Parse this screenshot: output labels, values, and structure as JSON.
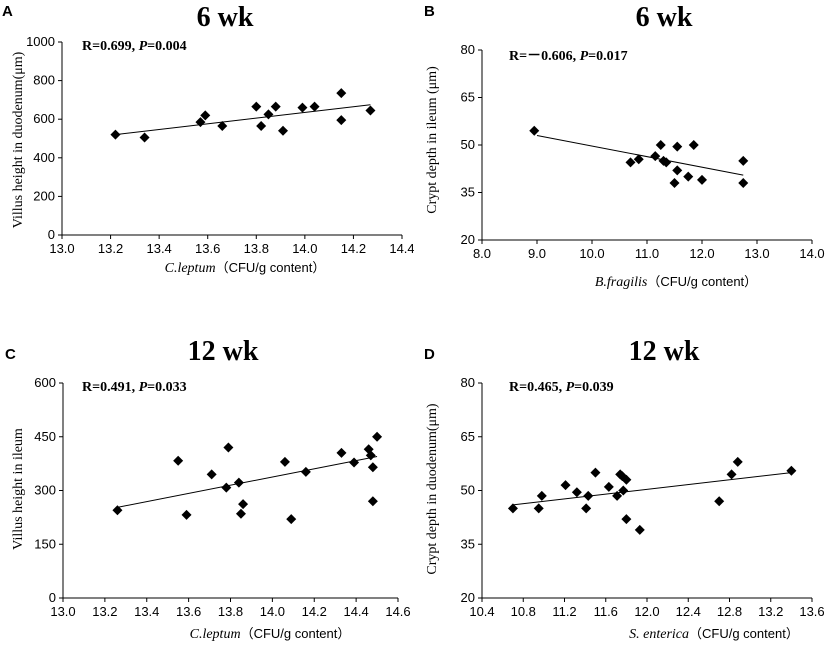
{
  "chart_data": [
    {
      "type": "scatter",
      "panel_label": "A",
      "title": "6 wk",
      "stat_r": "R=0.699, ",
      "stat_p_symbol": "P",
      "stat_p_value": "=0.004",
      "ylabel": "Villus height in duodenum(μm)",
      "xlabel_organism": "C.leptum",
      "xlabel_unit": "（CFU/g content）",
      "xlim": [
        13.0,
        14.4
      ],
      "ylim": [
        0,
        1000
      ],
      "xticks": [
        "13.0",
        "13.2",
        "13.4",
        "13.6",
        "13.8",
        "14.0",
        "14.2",
        "14.4"
      ],
      "yticks": [
        "0",
        "200",
        "400",
        "600",
        "800",
        "1000"
      ],
      "x": [
        13.22,
        13.34,
        13.57,
        13.59,
        13.66,
        13.8,
        13.82,
        13.85,
        13.88,
        13.91,
        13.99,
        14.04,
        14.15,
        14.15,
        14.27
      ],
      "y": [
        520,
        505,
        585,
        620,
        565,
        665,
        565,
        625,
        665,
        540,
        660,
        665,
        595,
        735,
        645
      ],
      "trend": [
        [
          13.22,
          520
        ],
        [
          14.27,
          675
        ]
      ]
    },
    {
      "type": "scatter",
      "panel_label": "B",
      "title": "6 wk",
      "stat_r": "R=－0.606, ",
      "stat_p_symbol": "P",
      "stat_p_value": "=0.017",
      "ylabel": "Crypt depth in ileum (μm)",
      "xlabel_organism": "B.fragilis",
      "xlabel_unit": "（CFU/g content）",
      "xlim": [
        8.0,
        14.0
      ],
      "ylim": [
        20,
        80
      ],
      "xticks": [
        "8.0",
        "9.0",
        "10.0",
        "11.0",
        "12.0",
        "13.0",
        "14.0"
      ],
      "yticks": [
        "20",
        "35",
        "50",
        "65",
        "80"
      ],
      "x": [
        8.95,
        10.7,
        10.85,
        11.15,
        11.25,
        11.3,
        11.35,
        11.5,
        11.55,
        11.55,
        11.75,
        11.85,
        12.0,
        12.75,
        12.75
      ],
      "y": [
        54.5,
        44.5,
        45.5,
        46.5,
        50,
        45,
        44.5,
        38,
        42,
        49.5,
        40,
        50,
        39,
        45,
        38
      ],
      "trend": [
        [
          9.0,
          53
        ],
        [
          12.75,
          40.5
        ]
      ]
    },
    {
      "type": "scatter",
      "panel_label": "C",
      "title": "12 wk",
      "stat_r": "R=0.491, ",
      "stat_p_symbol": "P",
      "stat_p_value": "=0.033",
      "ylabel": "Villus height in ileum",
      "xlabel_organism": "C.leptum",
      "xlabel_unit": "（CFU/g content）",
      "xlim": [
        13.0,
        14.6
      ],
      "ylim": [
        0,
        600
      ],
      "xticks": [
        "13.0",
        "13.2",
        "13.4",
        "13.6",
        "13.8",
        "14.0",
        "14.2",
        "14.4",
        "14.6"
      ],
      "yticks": [
        "0",
        "150",
        "300",
        "450",
        "600"
      ],
      "x": [
        13.26,
        13.55,
        13.59,
        13.71,
        13.78,
        13.79,
        13.84,
        13.85,
        13.86,
        14.06,
        14.09,
        14.16,
        14.33,
        14.39,
        14.46,
        14.47,
        14.48,
        14.48,
        14.5
      ],
      "y": [
        245,
        383,
        232,
        345,
        308,
        420,
        322,
        235,
        262,
        380,
        220,
        352,
        405,
        378,
        415,
        398,
        270,
        365,
        450
      ],
      "trend": [
        [
          13.26,
          253
        ],
        [
          14.5,
          395
        ]
      ]
    },
    {
      "type": "scatter",
      "panel_label": "D",
      "title": "12 wk",
      "stat_r": "R=0.465, ",
      "stat_p_symbol": "P",
      "stat_p_value": "=0.039",
      "ylabel": "Crypt depth in duodenum(μm)",
      "xlabel_organism": "S. enterica",
      "xlabel_unit": "（CFU/g content）",
      "xlim": [
        10.4,
        13.6
      ],
      "ylim": [
        20,
        80
      ],
      "xticks": [
        "10.4",
        "10.8",
        "11.2",
        "11.6",
        "12.0",
        "12.4",
        "12.8",
        "13.2",
        "13.6"
      ],
      "yticks": [
        "20",
        "35",
        "50",
        "65",
        "80"
      ],
      "x": [
        10.7,
        10.95,
        10.98,
        11.21,
        11.32,
        11.41,
        11.43,
        11.5,
        11.63,
        11.71,
        11.74,
        11.76,
        11.77,
        11.8,
        11.8,
        11.93,
        12.7,
        12.82,
        12.88,
        13.4
      ],
      "y": [
        45,
        45,
        48.5,
        51.5,
        49.5,
        45,
        48.5,
        55,
        51,
        48.5,
        54.5,
        54,
        50,
        53,
        42,
        39,
        47,
        54.5,
        58,
        55.5
      ],
      "trend": [
        [
          10.7,
          46
        ],
        [
          13.4,
          55
        ]
      ]
    }
  ]
}
